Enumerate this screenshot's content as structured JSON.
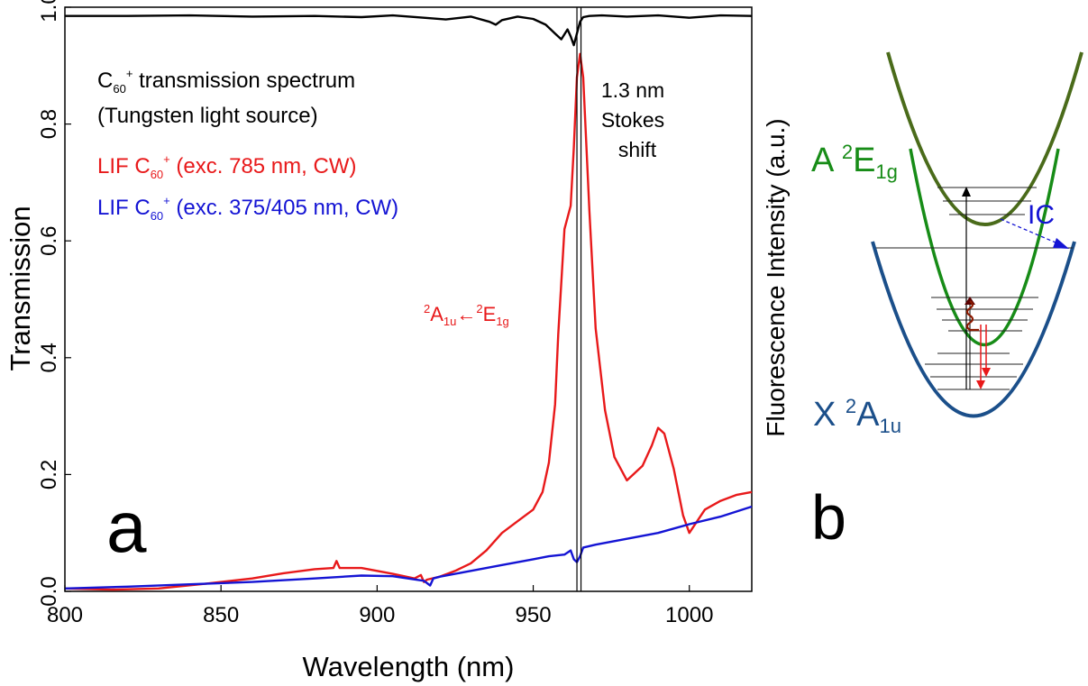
{
  "chart_data": [
    {
      "panel": "a",
      "type": "line",
      "xlabel": "Wavelength (nm)",
      "ylabel": "Transmission",
      "ylabel_right": "Fluorescence Intensity (a.u.)",
      "xlim": [
        800,
        1020
      ],
      "ylim": [
        0,
        1.0
      ],
      "x_ticks": [
        800,
        850,
        900,
        950,
        1000
      ],
      "y_ticks": [
        0.0,
        0.2,
        0.4,
        0.6,
        0.8,
        1.0
      ],
      "y_tick_labels": [
        "0.0",
        "0.2",
        "0.4",
        "0.6",
        "0.8",
        "1.0"
      ],
      "grid": false,
      "series": [
        {
          "name": "C60+ transmission spectrum",
          "color": "#000000",
          "x": [
            800,
            820,
            840,
            860,
            880,
            895,
            905,
            915,
            922,
            930,
            936,
            938,
            940,
            945,
            950,
            954,
            957,
            959,
            961,
            962,
            963,
            964,
            965,
            966,
            968,
            972,
            980,
            990,
            1000,
            1010,
            1020
          ],
          "y": [
            0.985,
            0.985,
            0.986,
            0.984,
            0.985,
            0.983,
            0.986,
            0.982,
            0.979,
            0.984,
            0.975,
            0.97,
            0.978,
            0.984,
            0.98,
            0.97,
            0.955,
            0.945,
            0.962,
            0.95,
            0.935,
            0.955,
            0.975,
            0.983,
            0.985,
            0.986,
            0.984,
            0.986,
            0.982,
            0.986,
            0.985
          ]
        },
        {
          "name": "LIF C60+ (exc. 785 nm, CW)",
          "color": "#e8191a",
          "x": [
            800,
            815,
            830,
            845,
            860,
            870,
            880,
            886,
            887,
            888,
            895,
            905,
            912,
            914,
            915,
            916,
            920,
            925,
            930,
            935,
            940,
            945,
            950,
            953,
            955,
            957,
            958,
            960,
            962,
            963,
            964,
            965,
            966,
            968,
            970,
            973,
            976,
            980,
            985,
            988,
            990,
            992,
            995,
            998,
            1000,
            1005,
            1010,
            1015,
            1020
          ],
          "y": [
            0.005,
            0.003,
            0.005,
            0.013,
            0.022,
            0.031,
            0.038,
            0.04,
            0.052,
            0.04,
            0.04,
            0.03,
            0.022,
            0.028,
            0.016,
            0.02,
            0.025,
            0.035,
            0.048,
            0.07,
            0.1,
            0.12,
            0.14,
            0.17,
            0.22,
            0.32,
            0.44,
            0.62,
            0.66,
            0.76,
            0.88,
            0.92,
            0.88,
            0.65,
            0.45,
            0.31,
            0.23,
            0.19,
            0.215,
            0.25,
            0.28,
            0.27,
            0.21,
            0.13,
            0.1,
            0.14,
            0.155,
            0.165,
            0.17
          ]
        },
        {
          "name": "LIF C60+ (exc. 375/405 nm, CW)",
          "color": "#1414d4",
          "x": [
            800,
            820,
            840,
            860,
            880,
            895,
            905,
            915,
            917,
            918,
            920,
            930,
            940,
            950,
            955,
            960,
            962,
            963,
            964,
            965,
            966,
            970,
            980,
            990,
            1000,
            1010,
            1020
          ],
          "y": [
            0.005,
            0.008,
            0.012,
            0.016,
            0.022,
            0.027,
            0.026,
            0.018,
            0.01,
            0.022,
            0.025,
            0.035,
            0.045,
            0.055,
            0.06,
            0.063,
            0.07,
            0.055,
            0.05,
            0.06,
            0.075,
            0.08,
            0.09,
            0.1,
            0.115,
            0.128,
            0.145
          ]
        }
      ],
      "vlines": [
        964,
        965.3
      ],
      "annotations": {
        "legend_line1_main": "C",
        "legend_line1_sub": "60",
        "legend_line1_sup": "+",
        "legend_line1_rest": " transmission spectrum",
        "legend_line2": "(Tungsten light source)",
        "lif_red_prefix": "LIF C",
        "lif_red_sub": "60",
        "lif_red_sup": "+",
        "lif_red_rest": " (exc. 785 nm, CW)",
        "lif_blue_prefix": "LIF C",
        "lif_blue_sub": "60",
        "lif_blue_sup": "+",
        "lif_blue_rest": " (exc. 375/405 nm, CW)",
        "transition_sup1": "2",
        "transition_a": "A",
        "transition_sub1": "1u",
        "transition_arrow": "←",
        "transition_sup2": "2",
        "transition_e": "E",
        "transition_sub2": "1g",
        "stokes_line1": "1.3 nm",
        "stokes_line2": "Stokes",
        "stokes_line3": "shift",
        "panel_label": "a"
      }
    },
    {
      "panel": "b",
      "type": "diagram",
      "upper_state": {
        "prefix": "A ",
        "sup": "2",
        "main": "E",
        "sub": "1g",
        "color": "#178c17"
      },
      "lower_state": {
        "prefix": "X ",
        "sup": "2",
        "main": "A",
        "sub": "1u",
        "color": "#1b4f8a"
      },
      "ic_label": "IC",
      "ic_color": "#1414d4",
      "top_curve_color": "#4a6b1a",
      "panel_label": "b"
    }
  ]
}
